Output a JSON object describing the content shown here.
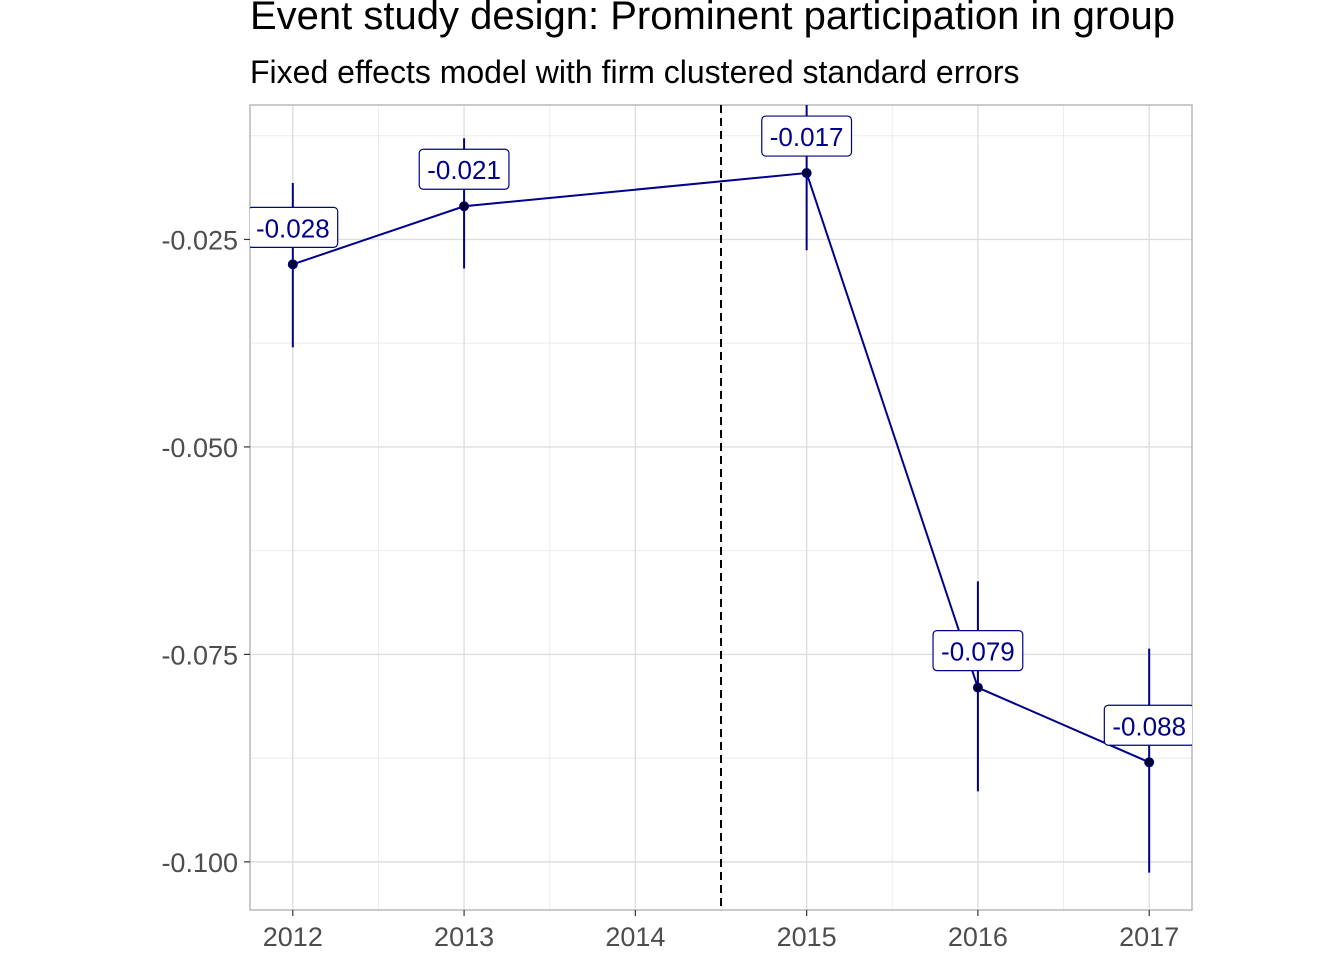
{
  "chart_data": {
    "type": "line",
    "title": "Event study design: Prominent participation in group",
    "subtitle": "Fixed effects model with firm clustered standard errors",
    "xlabel": "",
    "ylabel": "",
    "x": [
      2012,
      2013,
      2015,
      2016,
      2017
    ],
    "x_ticks": [
      "2012",
      "2013",
      "2014",
      "2015",
      "2016",
      "2017"
    ],
    "x_tick_values": [
      2012,
      2013,
      2014,
      2015,
      2016,
      2017
    ],
    "xlim": [
      2011.75,
      2017.25
    ],
    "ylim": [
      -0.1058,
      -0.0088
    ],
    "y_ticks": [
      "-0.025",
      "-0.050",
      "-0.075",
      "-0.100"
    ],
    "y_tick_values": [
      -0.025,
      -0.05,
      -0.075,
      -0.1
    ],
    "series": [
      {
        "values": [
          -0.028,
          -0.021,
          -0.017,
          -0.079,
          -0.088
        ],
        "ci_lower": [
          -0.038,
          -0.0285,
          -0.0263,
          -0.0915,
          -0.1013
        ],
        "ci_upper": [
          -0.0182,
          -0.0128,
          -0.0087,
          -0.0662,
          -0.0743
        ],
        "labels": [
          "-0.028",
          "-0.021",
          "-0.017",
          "-0.079",
          "-0.088"
        ],
        "color": "#00008B"
      }
    ],
    "reference_line": {
      "x": 2014.5,
      "style": "dashed",
      "color": "#000000"
    },
    "grid": true,
    "legend": "none"
  }
}
